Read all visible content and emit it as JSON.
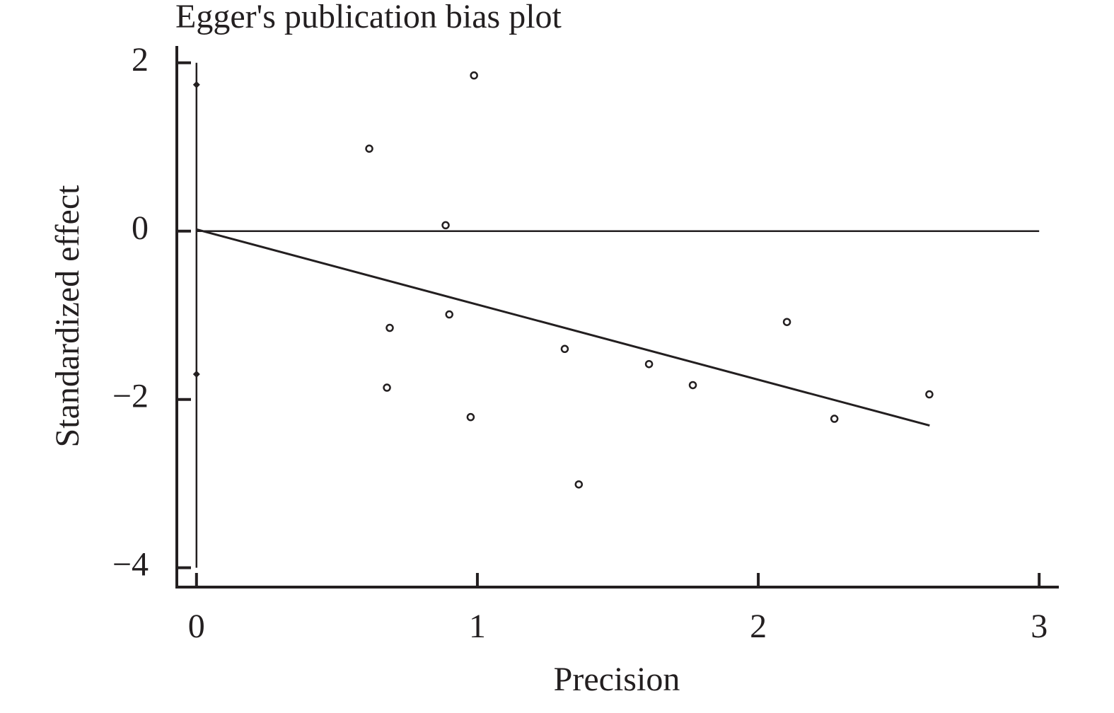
{
  "chart_data": {
    "type": "scatter",
    "title": "Egger's publication bias plot",
    "x_label": "Precision",
    "y_label": "Standardized effect",
    "x": [
      0.615,
      0.988,
      0.887,
      0.688,
      0.9,
      0.678,
      0.976,
      1.311,
      1.361,
      1.611,
      1.767,
      2.102,
      2.271,
      2.609
    ],
    "values": [
      0.98,
      1.85,
      0.07,
      -1.15,
      -0.99,
      -1.86,
      -2.21,
      -1.4,
      -3.01,
      -1.58,
      -1.83,
      -1.08,
      -2.23,
      -1.94
    ],
    "regression": {
      "x": [
        0,
        2.61
      ],
      "y": [
        0.02,
        -2.31
      ]
    },
    "reference_line": {
      "x": [
        0,
        3
      ],
      "y": [
        0,
        0
      ]
    },
    "intercept_ci": [
      -1.7,
      1.74
    ],
    "color": "#231f20",
    "xlim": [
      -0.07,
      3.07
    ],
    "ylim": [
      -4.23,
      2.2
    ],
    "xticks": [
      0,
      1,
      2,
      3
    ],
    "yticks": [
      2,
      0,
      {
        "value": -2,
        "label": "−2"
      },
      {
        "value": -4,
        "label": "−4"
      }
    ]
  }
}
